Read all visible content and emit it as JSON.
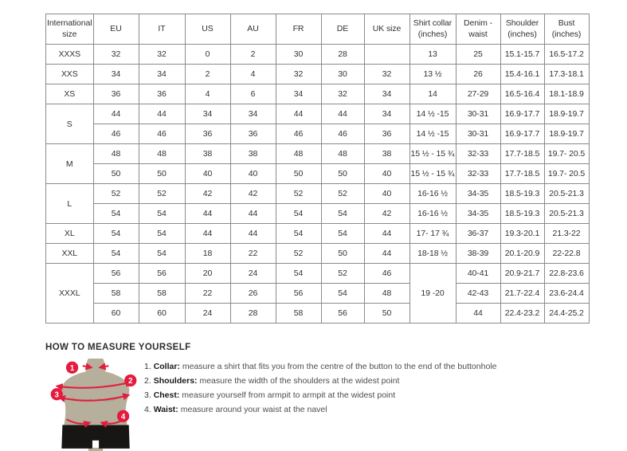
{
  "size_table": {
    "headers": [
      "International size",
      "EU",
      "IT",
      "US",
      "AU",
      "FR",
      "DE",
      "UK size",
      "Shirt collar (inches)",
      "Denim - waist",
      "Shoulder (inches)",
      "Bust (inches)"
    ],
    "rows": [
      {
        "cells": [
          {
            "v": "XXXS"
          },
          {
            "v": "32"
          },
          {
            "v": "32"
          },
          {
            "v": "0"
          },
          {
            "v": "2"
          },
          {
            "v": "30"
          },
          {
            "v": "28"
          },
          {
            "v": ""
          },
          {
            "v": "13"
          },
          {
            "v": "25"
          },
          {
            "v": "15.1-15.7"
          },
          {
            "v": "16.5-17.2"
          }
        ]
      },
      {
        "cells": [
          {
            "v": "XXS"
          },
          {
            "v": "34"
          },
          {
            "v": "34"
          },
          {
            "v": "2"
          },
          {
            "v": "4"
          },
          {
            "v": "32"
          },
          {
            "v": "30"
          },
          {
            "v": "32"
          },
          {
            "v": "13 ½"
          },
          {
            "v": "26"
          },
          {
            "v": "15.4-16.1"
          },
          {
            "v": "17.3-18.1"
          }
        ]
      },
      {
        "cells": [
          {
            "v": "XS"
          },
          {
            "v": "36"
          },
          {
            "v": "36"
          },
          {
            "v": "4"
          },
          {
            "v": "6"
          },
          {
            "v": "34"
          },
          {
            "v": "32"
          },
          {
            "v": "34"
          },
          {
            "v": "14"
          },
          {
            "v": "27-29"
          },
          {
            "v": "16.5-16.4"
          },
          {
            "v": "18.1-18.9"
          }
        ]
      },
      {
        "cells": [
          {
            "v": "S",
            "rs": 2
          },
          {
            "v": "44"
          },
          {
            "v": "44"
          },
          {
            "v": "34"
          },
          {
            "v": "34"
          },
          {
            "v": "44"
          },
          {
            "v": "44"
          },
          {
            "v": "34"
          },
          {
            "v": "14 ½ -15"
          },
          {
            "v": "30-31"
          },
          {
            "v": "16.9-17.7"
          },
          {
            "v": "18.9-19.7"
          }
        ]
      },
      {
        "cells": [
          {
            "v": "46"
          },
          {
            "v": "46"
          },
          {
            "v": "36"
          },
          {
            "v": "36"
          },
          {
            "v": "46"
          },
          {
            "v": "46"
          },
          {
            "v": "36"
          },
          {
            "v": "14 ½ -15"
          },
          {
            "v": "30-31"
          },
          {
            "v": "16.9-17.7"
          },
          {
            "v": "18.9-19.7"
          }
        ]
      },
      {
        "cells": [
          {
            "v": "M",
            "rs": 2
          },
          {
            "v": "48"
          },
          {
            "v": "48"
          },
          {
            "v": "38"
          },
          {
            "v": "38"
          },
          {
            "v": "48"
          },
          {
            "v": "48"
          },
          {
            "v": "38"
          },
          {
            "v": "15 ½ - 15 ¾"
          },
          {
            "v": "32-33"
          },
          {
            "v": "17.7-18.5"
          },
          {
            "v": "19.7- 20.5"
          }
        ]
      },
      {
        "cells": [
          {
            "v": "50"
          },
          {
            "v": "50"
          },
          {
            "v": "40"
          },
          {
            "v": "40"
          },
          {
            "v": "50"
          },
          {
            "v": "50"
          },
          {
            "v": "40"
          },
          {
            "v": "15 ½ - 15 ¾"
          },
          {
            "v": "32-33"
          },
          {
            "v": "17.7-18.5"
          },
          {
            "v": "19.7- 20.5"
          }
        ]
      },
      {
        "cells": [
          {
            "v": "L",
            "rs": 2
          },
          {
            "v": "52"
          },
          {
            "v": "52"
          },
          {
            "v": "42"
          },
          {
            "v": "42"
          },
          {
            "v": "52"
          },
          {
            "v": "52"
          },
          {
            "v": "40"
          },
          {
            "v": "16-16 ½"
          },
          {
            "v": "34-35"
          },
          {
            "v": "18.5-19.3"
          },
          {
            "v": "20.5-21.3"
          }
        ]
      },
      {
        "cells": [
          {
            "v": "54"
          },
          {
            "v": "54"
          },
          {
            "v": "44"
          },
          {
            "v": "44"
          },
          {
            "v": "54"
          },
          {
            "v": "54"
          },
          {
            "v": "42"
          },
          {
            "v": "16-16 ½"
          },
          {
            "v": "34-35"
          },
          {
            "v": "18.5-19.3"
          },
          {
            "v": "20.5-21.3"
          }
        ]
      },
      {
        "cells": [
          {
            "v": "XL"
          },
          {
            "v": "54"
          },
          {
            "v": "54"
          },
          {
            "v": "44"
          },
          {
            "v": "44"
          },
          {
            "v": "54"
          },
          {
            "v": "54"
          },
          {
            "v": "44"
          },
          {
            "v": "17- 17 ¾"
          },
          {
            "v": "36-37"
          },
          {
            "v": "19.3-20.1"
          },
          {
            "v": "21.3-22"
          }
        ]
      },
      {
        "cells": [
          {
            "v": "XXL"
          },
          {
            "v": "54"
          },
          {
            "v": "54"
          },
          {
            "v": "18"
          },
          {
            "v": "22"
          },
          {
            "v": "52"
          },
          {
            "v": "50"
          },
          {
            "v": "44"
          },
          {
            "v": "18-18 ½"
          },
          {
            "v": "38-39"
          },
          {
            "v": "20.1-20.9"
          },
          {
            "v": "22-22.8"
          }
        ]
      },
      {
        "cells": [
          {
            "v": "XXXL",
            "rs": 3
          },
          {
            "v": "56"
          },
          {
            "v": "56"
          },
          {
            "v": "20"
          },
          {
            "v": "24"
          },
          {
            "v": "54"
          },
          {
            "v": "52"
          },
          {
            "v": "46"
          },
          {
            "v": "19 -20",
            "rs": 3
          },
          {
            "v": "40-41"
          },
          {
            "v": "20.9-21.7"
          },
          {
            "v": "22.8-23.6"
          }
        ]
      },
      {
        "cells": [
          {
            "v": "58"
          },
          {
            "v": "58"
          },
          {
            "v": "22"
          },
          {
            "v": "26"
          },
          {
            "v": "56"
          },
          {
            "v": "54"
          },
          {
            "v": "48"
          },
          {
            "v": "42-43"
          },
          {
            "v": "21.7-22.4"
          },
          {
            "v": "23.6-24.4"
          }
        ]
      },
      {
        "cells": [
          {
            "v": "60"
          },
          {
            "v": "60"
          },
          {
            "v": "24"
          },
          {
            "v": "28"
          },
          {
            "v": "58"
          },
          {
            "v": "56"
          },
          {
            "v": "50"
          },
          {
            "v": "44"
          },
          {
            "v": "22.4-23.2"
          },
          {
            "v": "24.4-25.2"
          }
        ]
      }
    ]
  },
  "how_to_measure": {
    "heading": "HOW TO MEASURE YOURSELF",
    "steps": [
      {
        "num": "1.",
        "label": "Collar:",
        "text": "measure a shirt that fits you from the centre of the button to the end of the buttonhole"
      },
      {
        "num": "2.",
        "label": "Shoulders:",
        "text": "measure the width of the shoulders at the widest point"
      },
      {
        "num": "3.",
        "label": "Chest:",
        "text": "measure yourself from armpit to armpit at the widest point"
      },
      {
        "num": "4.",
        "label": "Waist:",
        "text": "measure around your waist at the navel"
      }
    ],
    "figure_badges": [
      "1",
      "2",
      "3",
      "4"
    ]
  },
  "colors": {
    "accent_red": "#e41b3d",
    "torso_tan": "#b5af9b",
    "shorts_black": "#181614",
    "border_gray": "#8a8a8a"
  }
}
